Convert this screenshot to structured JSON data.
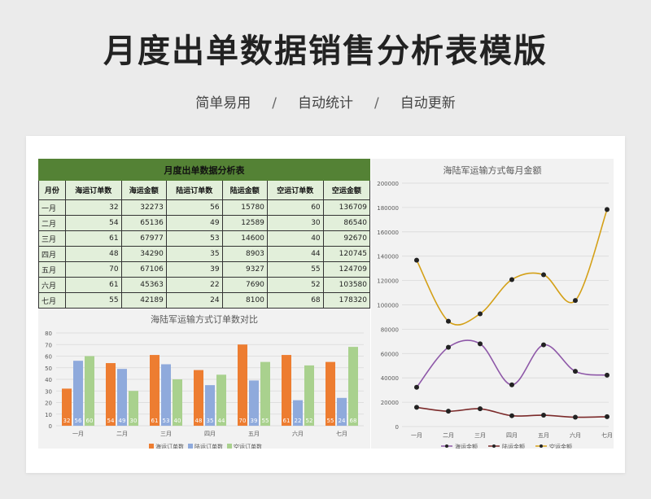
{
  "page": {
    "title": "月度出单数据销售分析表模版",
    "subtitle": [
      "简单易用",
      "自动统计",
      "自动更新"
    ],
    "separator": "/"
  },
  "table": {
    "title": "月度出单数据分析表",
    "headers": [
      "月份",
      "海运订单数",
      "海运金额",
      "陆运订单数",
      "陆运金额",
      "空运订单数",
      "空运金额"
    ],
    "rows": [
      [
        "一月",
        "32",
        "32273",
        "56",
        "15780",
        "60",
        "136709"
      ],
      [
        "二月",
        "54",
        "65136",
        "49",
        "12589",
        "30",
        "86540"
      ],
      [
        "三月",
        "61",
        "67977",
        "53",
        "14600",
        "40",
        "92670"
      ],
      [
        "四月",
        "48",
        "34290",
        "35",
        "8903",
        "44",
        "120745"
      ],
      [
        "五月",
        "70",
        "67106",
        "39",
        "9327",
        "55",
        "124709"
      ],
      [
        "六月",
        "61",
        "45363",
        "22",
        "7690",
        "52",
        "103580"
      ],
      [
        "七月",
        "55",
        "42189",
        "24",
        "8100",
        "68",
        "178320"
      ]
    ]
  },
  "chart_data": [
    {
      "type": "bar",
      "title": "海陆军运输方式订单数对比",
      "categories": [
        "一月",
        "二月",
        "三月",
        "四月",
        "五月",
        "六月",
        "七月"
      ],
      "ylim": [
        0,
        80
      ],
      "yticks": [
        0,
        10,
        20,
        30,
        40,
        50,
        60,
        70,
        80
      ],
      "legend": "bottom",
      "series": [
        {
          "name": "海运订单数",
          "color": "#ed7d31",
          "values": [
            32,
            54,
            61,
            48,
            70,
            61,
            55
          ]
        },
        {
          "name": "陆运订单数",
          "color": "#8faadc",
          "values": [
            56,
            49,
            53,
            35,
            39,
            22,
            24
          ]
        },
        {
          "name": "空运订单数",
          "color": "#a9d18e",
          "values": [
            60,
            30,
            40,
            44,
            55,
            52,
            68
          ]
        }
      ]
    },
    {
      "type": "line",
      "title": "海陆军运输方式每月金额",
      "categories": [
        "一月",
        "二月",
        "三月",
        "四月",
        "五月",
        "六月",
        "七月"
      ],
      "ylim": [
        0,
        200000
      ],
      "yticks": [
        0,
        20000,
        40000,
        60000,
        80000,
        100000,
        120000,
        140000,
        160000,
        180000,
        200000
      ],
      "legend": "bottom",
      "series": [
        {
          "name": "海运金额",
          "color": "#8e58a8",
          "values": [
            32273,
            65136,
            67977,
            34290,
            67106,
            45363,
            42189
          ]
        },
        {
          "name": "陆运金额",
          "color": "#7b2a2a",
          "values": [
            15780,
            12589,
            14600,
            8903,
            9327,
            7690,
            8100
          ]
        },
        {
          "name": "空运金额",
          "color": "#d4a017",
          "values": [
            136709,
            86540,
            92670,
            120745,
            124709,
            103580,
            178320
          ]
        }
      ]
    }
  ]
}
